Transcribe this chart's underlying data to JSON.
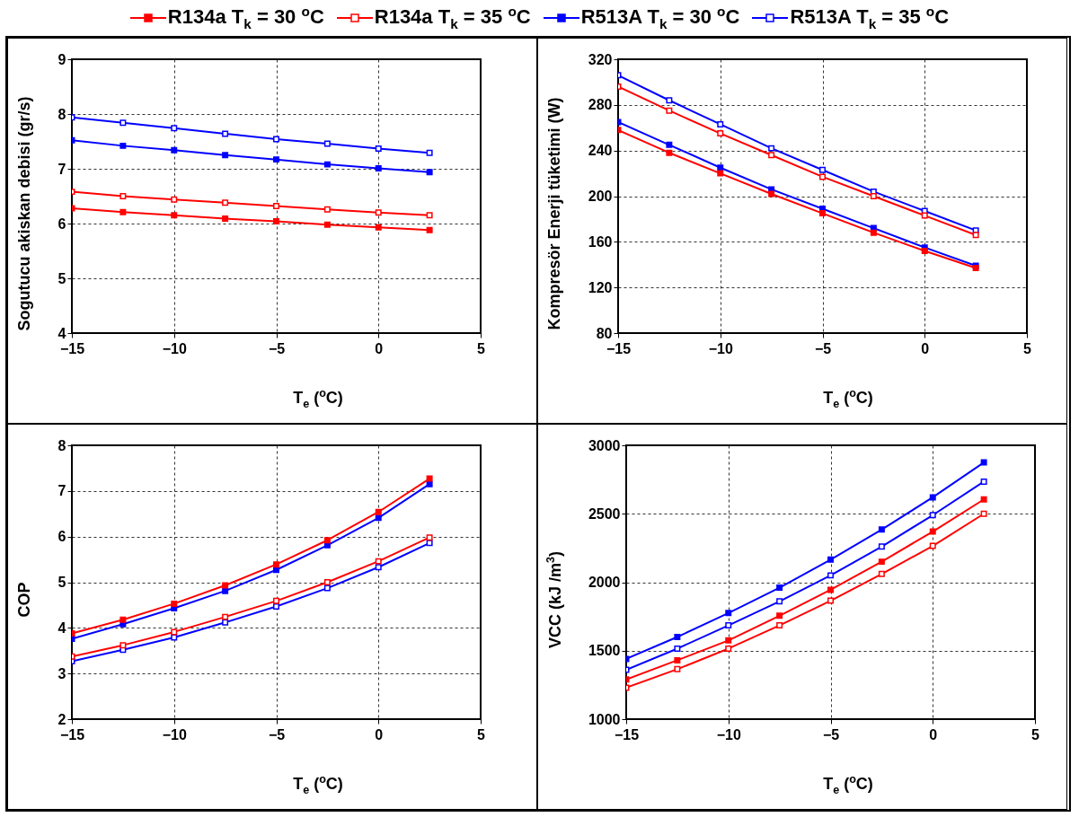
{
  "chart_data": [
    {
      "type": "line",
      "xlabel": "T$_{e}$ ($^{o}$C)",
      "ylabel": "Sogutucu akiskan debisi (gr/s)",
      "x": [
        -15,
        -12.5,
        -10,
        -7.5,
        -5,
        -2.5,
        0,
        2.5
      ],
      "xlim": [
        -15,
        5
      ],
      "xticks": [
        -15,
        -10,
        -5,
        0,
        5
      ],
      "ylim": [
        4,
        9
      ],
      "yticks": [
        4,
        5,
        6,
        7,
        8,
        9
      ],
      "grid": true,
      "legend": "top",
      "marker": "square",
      "series": [
        {
          "name": "R134a T$_{k}$ = 30 $^{o}$C",
          "color": "#ff0000",
          "values": [
            6.28,
            6.21,
            6.15,
            6.09,
            6.04,
            5.98,
            5.93,
            5.88
          ]
        },
        {
          "name": "R134a T$_{k}$ = 35 $^{o}$C",
          "color": "#ff0000",
          "values": [
            6.58,
            6.5,
            6.44,
            6.38,
            6.32,
            6.26,
            6.2,
            6.15
          ]
        },
        {
          "name": "R513A T$_{k}$ = 30 $^{o}$C",
          "color": "#0000ff",
          "values": [
            7.52,
            7.42,
            7.34,
            7.25,
            7.17,
            7.08,
            7.01,
            6.94
          ]
        },
        {
          "name": "R513A T$_{k}$ = 35 $^{o}$C",
          "color": "#0000ff",
          "values": [
            7.94,
            7.84,
            7.74,
            7.64,
            7.54,
            7.46,
            7.37,
            7.29
          ]
        }
      ]
    },
    {
      "type": "line",
      "xlabel": "T$_{e}$ ($^{o}$C)",
      "ylabel": "Kompresör Enerji tüketimi (W)",
      "x": [
        -15,
        -12.5,
        -10,
        -7.5,
        -5,
        -2.5,
        0,
        2.5
      ],
      "xlim": [
        -15,
        5
      ],
      "xticks": [
        -15,
        -10,
        -5,
        0,
        5
      ],
      "ylim": [
        80,
        320
      ],
      "yticks": [
        80,
        120,
        160,
        200,
        240,
        280,
        320
      ],
      "grid": true,
      "marker": "square",
      "series": [
        {
          "color": "#ff0000",
          "values": [
            258,
            238,
            220,
            202,
            185,
            168,
            152,
            137
          ]
        },
        {
          "color": "#ff0000",
          "values": [
            296,
            275,
            255,
            236,
            217,
            200,
            183,
            166
          ]
        },
        {
          "color": "#0000ff",
          "values": [
            265,
            245,
            225,
            206,
            189,
            172,
            155,
            139
          ]
        },
        {
          "color": "#0000ff",
          "values": [
            306,
            284,
            263,
            242,
            223,
            204,
            187,
            170
          ]
        }
      ]
    },
    {
      "type": "line",
      "xlabel": "T$_{e}$ ($^{o}$C)",
      "ylabel": "COP",
      "x": [
        -15,
        -12.5,
        -10,
        -7.5,
        -5,
        -2.5,
        0,
        2.5
      ],
      "xlim": [
        -15,
        5
      ],
      "xticks": [
        -15,
        -10,
        -5,
        0,
        5
      ],
      "ylim": [
        2,
        8
      ],
      "yticks": [
        2,
        3,
        4,
        5,
        6,
        7,
        8
      ],
      "grid": true,
      "marker": "square",
      "series": [
        {
          "color": "#ff0000",
          "values": [
            3.88,
            4.18,
            4.53,
            4.93,
            5.39,
            5.92,
            6.54,
            7.27
          ]
        },
        {
          "color": "#ff0000",
          "values": [
            3.37,
            3.62,
            3.91,
            4.24,
            4.59,
            5.0,
            5.46,
            5.98
          ]
        },
        {
          "color": "#0000ff",
          "values": [
            3.76,
            4.08,
            4.43,
            4.81,
            5.27,
            5.81,
            6.41,
            7.15
          ]
        },
        {
          "color": "#0000ff",
          "values": [
            3.27,
            3.52,
            3.79,
            4.12,
            4.47,
            4.87,
            5.33,
            5.86
          ]
        }
      ]
    },
    {
      "type": "line",
      "xlabel": "T$_{e}$ ($^{o}$C)",
      "ylabel": "VCC (kJ /m$^{3}$)",
      "x": [
        -15,
        -12.5,
        -10,
        -7.5,
        -5,
        -2.5,
        0,
        2.5
      ],
      "xlim": [
        -15,
        5
      ],
      "xticks": [
        -15,
        -10,
        -5,
        0,
        5
      ],
      "ylim": [
        1000,
        3000
      ],
      "yticks": [
        1000,
        1500,
        2000,
        2500,
        3000
      ],
      "grid": true,
      "marker": "square",
      "series": [
        {
          "color": "#ff0000",
          "values": [
            1290,
            1430,
            1575,
            1755,
            1945,
            2150,
            2370,
            2605
          ]
        },
        {
          "color": "#ff0000",
          "values": [
            1230,
            1365,
            1515,
            1685,
            1865,
            2060,
            2265,
            2500
          ]
        },
        {
          "color": "#0000ff",
          "values": [
            1440,
            1600,
            1775,
            1960,
            2165,
            2385,
            2620,
            2875
          ]
        },
        {
          "color": "#0000ff",
          "values": [
            1360,
            1515,
            1685,
            1860,
            2050,
            2260,
            2490,
            2735
          ]
        }
      ]
    }
  ]
}
